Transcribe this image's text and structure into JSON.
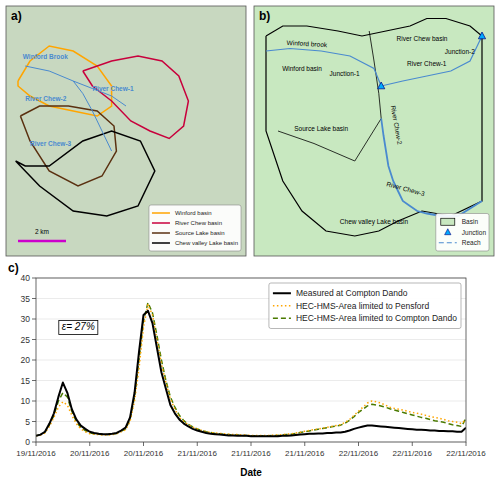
{
  "chart_data": [
    {
      "type": "map",
      "title": "a)",
      "annotations": [
        "Winford Brook",
        "River Chew-1",
        "River Chew-2",
        "River Chew-3",
        "2 km"
      ],
      "series": [
        {
          "name": "Winford basin",
          "color": "#FFA500"
        },
        {
          "name": "River Chew basin",
          "color": "#C8003C"
        },
        {
          "name": "Source Lake basin",
          "color": "#5a3010"
        },
        {
          "name": "Chew valley Lake basin",
          "color": "#000000"
        }
      ],
      "legend": "lower right",
      "tick_labels": false
    },
    {
      "type": "diagram",
      "title": "b)",
      "annotations": [
        "Winford brook",
        "Winford basin",
        "River Chew basin",
        "River Chew-1",
        "River Chew-2",
        "Source Lake basin",
        "River Chew-3",
        "Chew valley Lake basin",
        "Junction-1",
        "Junction-2"
      ],
      "series": [
        {
          "name": "Basin",
          "color": "#c8e8c0"
        },
        {
          "name": "Junction",
          "color": "#00aaff",
          "marker": "triangle"
        },
        {
          "name": "Reach",
          "color": "#4a8acf",
          "line_style": "dashed"
        }
      ],
      "legend": "lower right",
      "tick_labels": false
    },
    {
      "type": "line",
      "title": "c)",
      "x_label": "Date",
      "x": [
        0,
        1,
        2,
        3,
        4,
        5,
        6,
        7,
        8,
        9,
        10,
        11,
        12,
        13,
        14,
        15,
        16,
        17,
        18,
        19,
        20,
        21,
        22,
        23,
        24,
        25,
        26,
        27,
        28,
        29,
        30,
        31,
        32,
        33,
        34,
        35,
        36,
        37,
        38,
        39,
        40,
        41,
        42,
        43,
        44,
        45,
        46,
        47,
        48,
        49,
        50,
        51,
        52,
        53,
        54,
        55,
        56,
        57,
        58,
        59,
        60,
        61,
        62,
        63,
        64,
        65,
        66,
        67,
        68,
        69,
        70,
        71,
        72,
        73,
        74,
        75,
        76,
        77,
        78,
        79,
        80,
        81,
        82,
        83,
        84,
        85,
        86,
        87,
        88,
        89,
        90,
        91,
        92,
        93,
        94,
        95,
        96
      ],
      "xlim": [
        0,
        96
      ],
      "xticks": [
        {
          "value": 0,
          "label": "19/11/2016"
        },
        {
          "value": 12,
          "label": "20/11/2016"
        },
        {
          "value": 24,
          "label": "20/11/2016"
        },
        {
          "value": 36,
          "label": "21/11/2016"
        },
        {
          "value": 48,
          "label": "21/11/2016"
        },
        {
          "value": 60,
          "label": "21/11/2016"
        },
        {
          "value": 72,
          "label": "22/11/2016"
        },
        {
          "value": 84,
          "label": "22/11/2016"
        },
        {
          "value": 96,
          "label": "22/11/2016"
        }
      ],
      "ylim": [
        0,
        40
      ],
      "yticks": [
        0,
        5,
        10,
        15,
        20,
        25,
        30,
        35,
        40
      ],
      "grid": true,
      "legend": "upper right",
      "annotations": [
        "ε= 27%"
      ],
      "series": [
        {
          "name": "Measured at Compton Dando",
          "color": "#000000",
          "line_style": "solid",
          "values": [
            1.5,
            1.8,
            2.5,
            4.5,
            7.0,
            11.0,
            14.5,
            12.0,
            8.0,
            5.5,
            4.0,
            3.2,
            2.5,
            2.2,
            2.0,
            1.9,
            1.9,
            2.0,
            2.2,
            2.8,
            3.5,
            6.0,
            12.0,
            22.0,
            31.0,
            32.0,
            29.0,
            23.0,
            17.0,
            13.0,
            9.0,
            7.0,
            5.5,
            4.5,
            3.8,
            3.2,
            2.8,
            2.5,
            2.2,
            2.0,
            1.9,
            1.8,
            1.7,
            1.6,
            1.6,
            1.5,
            1.5,
            1.5,
            1.4,
            1.4,
            1.4,
            1.4,
            1.4,
            1.4,
            1.4,
            1.5,
            1.5,
            1.6,
            1.7,
            1.8,
            1.9,
            2.0,
            2.0,
            2.1,
            2.1,
            2.2,
            2.2,
            2.3,
            2.3,
            2.5,
            2.8,
            3.2,
            3.5,
            3.8,
            4.0,
            4.0,
            3.9,
            3.8,
            3.7,
            3.6,
            3.5,
            3.4,
            3.3,
            3.2,
            3.1,
            3.0,
            3.0,
            2.9,
            2.8,
            2.8,
            2.7,
            2.7,
            2.6,
            2.6,
            2.5,
            2.5,
            3.5
          ]
        },
        {
          "name": "HEC-HMS-Area limited to Pensford",
          "color": "#FFA500",
          "line_style": "dotted",
          "values": [
            1.5,
            1.7,
            2.2,
            3.8,
            6.0,
            8.5,
            9.8,
            9.0,
            6.5,
            4.5,
            3.2,
            2.5,
            2.0,
            1.9,
            1.8,
            1.7,
            1.7,
            1.8,
            2.0,
            2.5,
            3.0,
            5.0,
            10.0,
            18.0,
            28.0,
            33.5,
            31.0,
            25.0,
            19.0,
            14.5,
            10.5,
            8.0,
            6.0,
            5.0,
            4.2,
            3.6,
            3.2,
            2.8,
            2.5,
            2.3,
            2.2,
            2.1,
            2.0,
            1.9,
            1.8,
            1.8,
            1.7,
            1.7,
            1.6,
            1.6,
            1.6,
            1.6,
            1.6,
            1.7,
            1.7,
            1.8,
            1.9,
            2.0,
            2.2,
            2.4,
            2.6,
            2.8,
            3.0,
            3.2,
            3.4,
            3.6,
            3.8,
            4.0,
            4.2,
            4.8,
            5.5,
            6.5,
            7.5,
            8.5,
            9.5,
            10.0,
            9.8,
            9.5,
            9.0,
            8.5,
            8.2,
            8.0,
            7.8,
            7.5,
            7.2,
            7.0,
            6.8,
            6.5,
            6.2,
            6.0,
            5.8,
            5.5,
            5.2,
            5.0,
            4.8,
            4.5,
            5.5
          ]
        },
        {
          "name": "HEC-HMS-Area limited to Compton Dando",
          "color": "#4a7a00",
          "line_style": "dashed",
          "values": [
            1.5,
            1.8,
            2.4,
            4.2,
            6.5,
            10.0,
            12.0,
            11.0,
            7.5,
            5.0,
            3.5,
            2.8,
            2.2,
            2.0,
            1.9,
            1.8,
            1.8,
            1.9,
            2.1,
            2.6,
            3.2,
            5.5,
            11.0,
            20.0,
            29.5,
            34.0,
            31.5,
            26.0,
            20.0,
            15.0,
            11.0,
            8.5,
            6.5,
            5.2,
            4.3,
            3.7,
            3.2,
            2.8,
            2.5,
            2.3,
            2.1,
            2.0,
            1.9,
            1.8,
            1.7,
            1.7,
            1.6,
            1.6,
            1.5,
            1.5,
            1.5,
            1.5,
            1.5,
            1.6,
            1.6,
            1.7,
            1.8,
            1.9,
            2.1,
            2.3,
            2.5,
            2.7,
            2.9,
            3.1,
            3.3,
            3.5,
            3.7,
            3.9,
            4.1,
            4.6,
            5.3,
            6.2,
            7.2,
            8.0,
            8.8,
            9.2,
            9.0,
            8.8,
            8.5,
            8.1,
            7.8,
            7.5,
            7.2,
            6.9,
            6.6,
            6.3,
            6.0,
            5.8,
            5.5,
            5.2,
            5.0,
            4.8,
            4.5,
            4.2,
            4.0,
            3.8,
            5.8
          ]
        }
      ]
    }
  ]
}
